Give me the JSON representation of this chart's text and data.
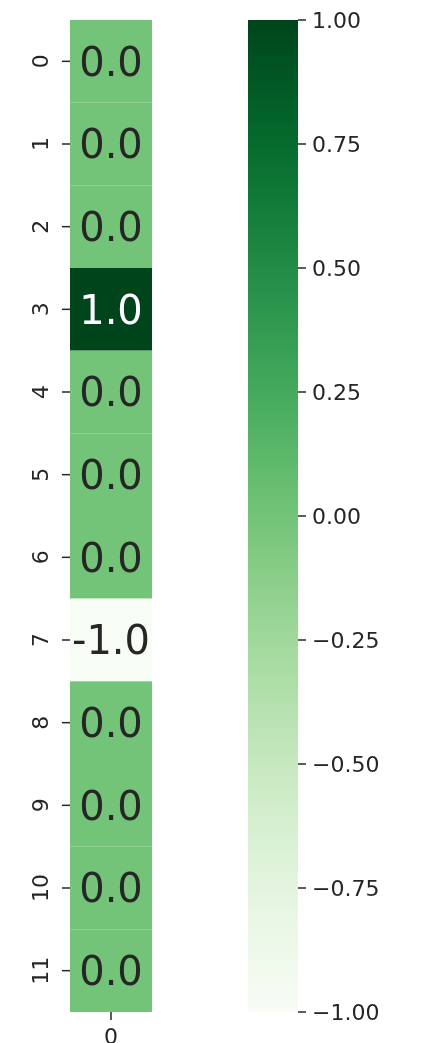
{
  "chart_data": {
    "type": "heatmap",
    "categories": [
      "0"
    ],
    "y_categories": [
      "0",
      "1",
      "2",
      "3",
      "4",
      "5",
      "6",
      "7",
      "8",
      "9",
      "10",
      "11"
    ],
    "cells": [
      [
        0
      ],
      [
        0
      ],
      [
        0
      ],
      [
        1
      ],
      [
        0
      ],
      [
        0
      ],
      [
        0
      ],
      [
        -1
      ],
      [
        0
      ],
      [
        0
      ],
      [
        0
      ],
      [
        0
      ]
    ],
    "cell_labels": [
      [
        "0.0"
      ],
      [
        "0.0"
      ],
      [
        "0.0"
      ],
      [
        "1.0"
      ],
      [
        "0.0"
      ],
      [
        "0.0"
      ],
      [
        "0.0"
      ],
      [
        "-1.0"
      ],
      [
        "0.0"
      ],
      [
        "0.0"
      ],
      [
        "0.0"
      ],
      [
        "0.0"
      ]
    ],
    "clim": [
      -1,
      1
    ],
    "cticks": [
      {
        "value": -1,
        "label": "−1.00"
      },
      {
        "value": -0.75,
        "label": "−0.75"
      },
      {
        "value": -0.5,
        "label": "−0.50"
      },
      {
        "value": -0.25,
        "label": "−0.25"
      },
      {
        "value": 0,
        "label": "0.00"
      },
      {
        "value": 0.25,
        "label": "0.25"
      },
      {
        "value": 0.5,
        "label": "0.50"
      },
      {
        "value": 0.75,
        "label": "0.75"
      },
      {
        "value": 1,
        "label": "1.00"
      }
    ]
  }
}
